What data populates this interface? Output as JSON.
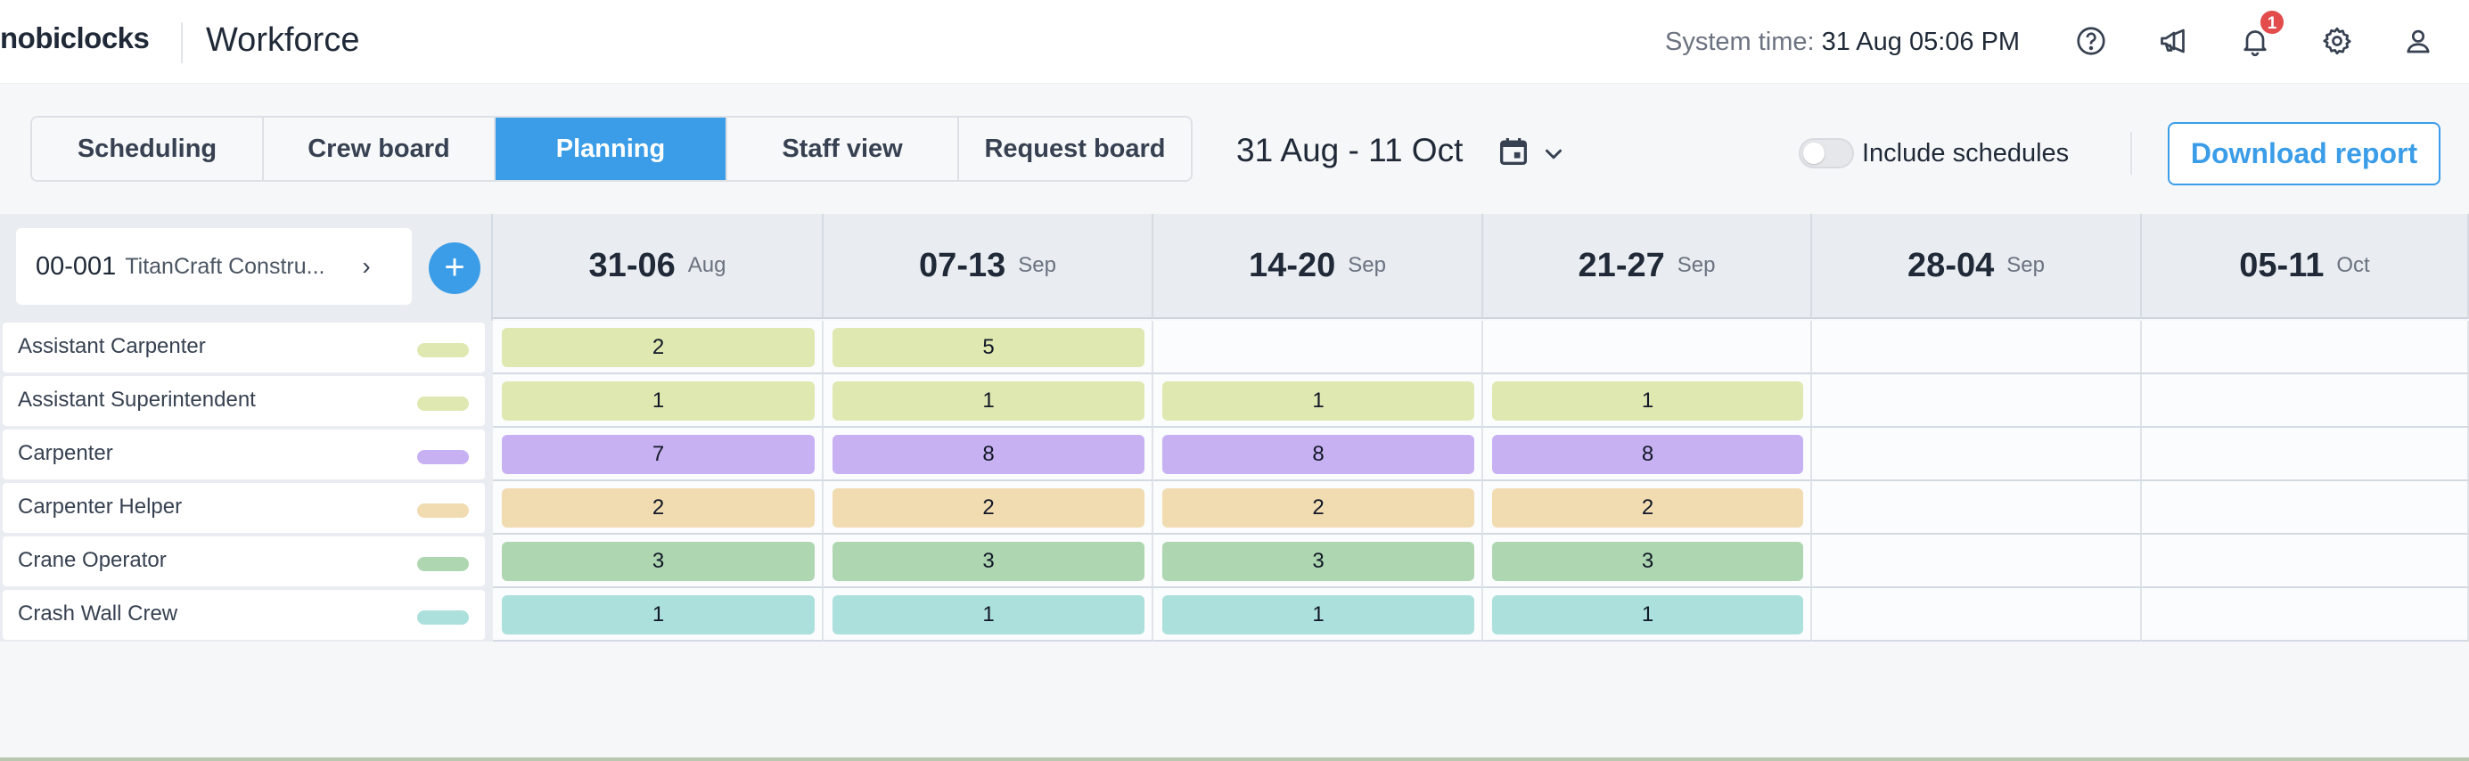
{
  "brand": "nobiclocks",
  "app_title": "Workforce",
  "system_time": {
    "label": "System time:",
    "value": "31 Aug 05:06 PM"
  },
  "icons": [
    "help-icon",
    "megaphone-icon",
    "bell-icon",
    "gear-icon",
    "user-icon"
  ],
  "notifications": {
    "count": "1"
  },
  "tabs": [
    {
      "label": "Scheduling",
      "active": false
    },
    {
      "label": "Crew board",
      "active": false
    },
    {
      "label": "Planning",
      "active": true
    },
    {
      "label": "Staff view",
      "active": false
    },
    {
      "label": "Request board",
      "active": false
    }
  ],
  "date_range": "31 Aug - 11 Oct",
  "include_schedules": {
    "label": "Include schedules",
    "checked": false
  },
  "download_label": "Download report",
  "project": {
    "code": "00-001",
    "name": "TitanCraft Constru..."
  },
  "weeks": [
    {
      "range": "31-06",
      "month": "Aug"
    },
    {
      "range": "07-13",
      "month": "Sep"
    },
    {
      "range": "14-20",
      "month": "Sep"
    },
    {
      "range": "21-27",
      "month": "Sep"
    },
    {
      "range": "28-04",
      "month": "Sep"
    },
    {
      "range": "05-11",
      "month": "Oct"
    }
  ],
  "roles": [
    {
      "name": "Assistant Carpenter",
      "color": "#dfe8b0",
      "counts": [
        "2",
        "5",
        "",
        "",
        "",
        ""
      ]
    },
    {
      "name": "Assistant Superintendent",
      "color": "#dfe8b0",
      "counts": [
        "1",
        "1",
        "1",
        "1",
        "",
        ""
      ]
    },
    {
      "name": "Carpenter",
      "color": "#c8b1f2",
      "counts": [
        "7",
        "8",
        "8",
        "8",
        "",
        ""
      ]
    },
    {
      "name": "Carpenter Helper",
      "color": "#f1dbb0",
      "counts": [
        "2",
        "2",
        "2",
        "2",
        "",
        ""
      ]
    },
    {
      "name": "Crane Operator",
      "color": "#aed7b1",
      "counts": [
        "3",
        "3",
        "3",
        "3",
        "",
        ""
      ]
    },
    {
      "name": "Crash Wall Crew",
      "color": "#ace0dc",
      "counts": [
        "1",
        "1",
        "1",
        "1",
        "",
        ""
      ]
    }
  ],
  "colors": {
    "accent": "#3b9de8",
    "badge": "#e24c4c"
  }
}
